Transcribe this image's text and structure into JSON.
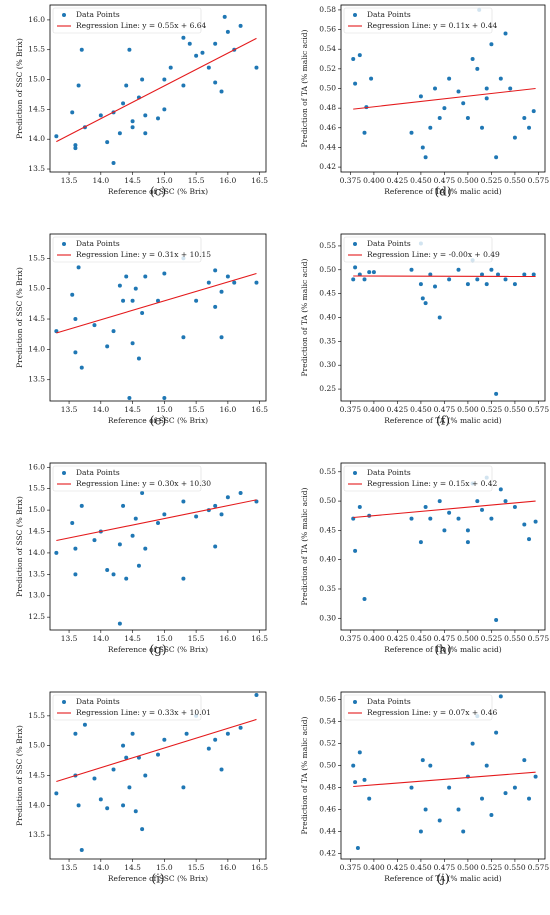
{
  "chart_data": [
    {
      "type": "scatter",
      "label": "(c)",
      "x_label": "Reference of SSC (% Brix)",
      "y_label": "Prediction of SSC (% Brix)",
      "legend": "upper left",
      "xlim": [
        13.2,
        16.6
      ],
      "xticks": [
        13.5,
        {
          "value": 14,
          "label": "14.0"
        },
        14.5,
        {
          "value": 15,
          "label": "15.0"
        },
        15.5,
        {
          "value": 16,
          "label": "16.0"
        },
        16.5
      ],
      "ylim": [
        13.45,
        16.25
      ],
      "yticks": [
        13.5,
        {
          "value": 14,
          "label": "14.0"
        },
        14.5,
        {
          "value": 15,
          "label": "15.0"
        },
        15.5,
        {
          "value": 16,
          "label": "16.0"
        }
      ],
      "series": [
        {
          "name": "Data Points",
          "color": "#1f77b4",
          "x": [
            13.3,
            13.55,
            13.6,
            13.6,
            13.65,
            13.7,
            13.75,
            14.0,
            14.1,
            14.2,
            14.2,
            14.3,
            14.35,
            14.4,
            14.45,
            14.5,
            14.5,
            14.6,
            14.65,
            14.7,
            14.7,
            14.9,
            15.0,
            15.0,
            15.1,
            15.3,
            15.3,
            15.4,
            15.5,
            15.6,
            15.7,
            15.8,
            15.8,
            15.9,
            15.95,
            16.0,
            16.1,
            16.2,
            16.45
          ],
          "values": [
            14.05,
            14.45,
            13.85,
            13.9,
            14.9,
            15.5,
            14.2,
            14.4,
            13.95,
            13.6,
            14.45,
            14.1,
            14.6,
            14.9,
            15.5,
            14.2,
            14.3,
            14.7,
            15.0,
            14.4,
            14.1,
            14.35,
            14.5,
            15.0,
            15.2,
            14.9,
            15.7,
            15.6,
            15.4,
            15.45,
            15.2,
            14.95,
            15.6,
            14.8,
            16.05,
            15.8,
            15.5,
            15.9,
            15.2
          ]
        },
        {
          "name": "Regression Line: y = 0.55x + 6.64",
          "color": "#e41a1c",
          "x": [
            13.3,
            16.45
          ],
          "values": [
            13.96,
            15.69
          ]
        }
      ]
    },
    {
      "type": "scatter",
      "label": "(d)",
      "x_label": "Reference of TA (% malic acid)",
      "y_label": "Prediction of TA (% malic acid)",
      "legend": "upper left",
      "xlim": [
        0.365,
        0.582
      ],
      "xticks": [
        0.375,
        {
          "value": 0.4,
          "label": "0.400"
        },
        0.425,
        {
          "value": 0.45,
          "label": "0.450"
        },
        0.475,
        {
          "value": 0.5,
          "label": "0.500"
        },
        0.525,
        {
          "value": 0.55,
          "label": "0.550"
        },
        0.575
      ],
      "ylim": [
        0.415,
        0.585
      ],
      "yticks": [
        0.42,
        0.44,
        0.46,
        0.48,
        {
          "value": 0.5,
          "label": "0.50"
        },
        0.52,
        0.54,
        0.56,
        0.58
      ],
      "series": [
        {
          "name": "Data Points",
          "color": "#1f77b4",
          "x": [
            0.378,
            0.38,
            0.385,
            0.39,
            0.392,
            0.397,
            0.44,
            0.45,
            0.452,
            0.455,
            0.46,
            0.465,
            0.47,
            0.475,
            0.48,
            0.49,
            0.495,
            0.5,
            0.505,
            0.51,
            0.512,
            0.515,
            0.52,
            0.525,
            0.53,
            0.535,
            0.54,
            0.545,
            0.55,
            0.56,
            0.565,
            0.57,
            0.52
          ],
          "values": [
            0.53,
            0.505,
            0.534,
            0.455,
            0.481,
            0.51,
            0.455,
            0.492,
            0.44,
            0.43,
            0.46,
            0.5,
            0.47,
            0.48,
            0.51,
            0.497,
            0.485,
            0.47,
            0.53,
            0.52,
            0.58,
            0.46,
            0.49,
            0.545,
            0.43,
            0.51,
            0.556,
            0.5,
            0.45,
            0.47,
            0.46,
            0.477,
            0.5
          ]
        },
        {
          "name": "Regression Line: y = 0.11x + 0.44",
          "color": "#e41a1c",
          "x": [
            0.378,
            0.572
          ],
          "values": [
            0.479,
            0.5
          ]
        }
      ]
    },
    {
      "type": "scatter",
      "label": "(e)",
      "x_label": "Reference of SSC (% Brix)",
      "y_label": "Prediction of SSC (% Brix)",
      "legend": "upper left",
      "xlim": [
        13.2,
        16.6
      ],
      "xticks": [
        13.5,
        {
          "value": 14,
          "label": "14.0"
        },
        14.5,
        {
          "value": 15,
          "label": "15.0"
        },
        15.5,
        {
          "value": 16,
          "label": "16.0"
        },
        16.5
      ],
      "ylim": [
        13.15,
        15.9
      ],
      "yticks": [
        13.5,
        {
          "value": 14,
          "label": "14.0"
        },
        14.5,
        {
          "value": 15,
          "label": "15.0"
        },
        15.5
      ],
      "series": [
        {
          "name": "Data Points",
          "color": "#1f77b4",
          "x": [
            13.3,
            13.55,
            13.6,
            13.6,
            13.65,
            13.7,
            13.9,
            14.1,
            14.2,
            14.3,
            14.35,
            14.4,
            14.45,
            14.5,
            14.5,
            14.55,
            14.6,
            14.65,
            14.7,
            14.9,
            15.0,
            15.0,
            15.3,
            15.3,
            15.5,
            15.7,
            15.8,
            15.8,
            15.9,
            16.0,
            16.1,
            16.45,
            15.9
          ],
          "values": [
            14.3,
            14.9,
            13.95,
            14.5,
            15.35,
            13.7,
            14.4,
            14.05,
            14.3,
            15.05,
            14.8,
            15.2,
            13.2,
            14.1,
            14.8,
            15.0,
            13.85,
            14.6,
            15.2,
            14.8,
            15.25,
            13.2,
            15.5,
            14.2,
            14.8,
            15.1,
            15.3,
            14.7,
            14.2,
            15.2,
            15.1,
            15.1,
            14.95
          ]
        },
        {
          "name": "Regression Line: y = 0.31x + 10.15",
          "color": "#e41a1c",
          "x": [
            13.3,
            16.45
          ],
          "values": [
            14.27,
            15.25
          ]
        }
      ]
    },
    {
      "type": "scatter",
      "label": "(f)",
      "x_label": "Reference of TA (% malic acid)",
      "y_label": "Prediction of TA (% malic acid)",
      "legend": "upper left",
      "xlim": [
        0.365,
        0.582
      ],
      "xticks": [
        0.375,
        {
          "value": 0.4,
          "label": "0.400"
        },
        0.425,
        {
          "value": 0.45,
          "label": "0.450"
        },
        0.475,
        {
          "value": 0.5,
          "label": "0.500"
        },
        0.525,
        {
          "value": 0.55,
          "label": "0.550"
        },
        0.575
      ],
      "ylim": [
        0.225,
        0.575
      ],
      "yticks": [
        0.25,
        {
          "value": 0.3,
          "label": "0.30"
        },
        0.35,
        {
          "value": 0.4,
          "label": "0.40"
        },
        0.45,
        {
          "value": 0.5,
          "label": "0.50"
        },
        0.55
      ],
      "series": [
        {
          "name": "Data Points",
          "color": "#1f77b4",
          "x": [
            0.378,
            0.38,
            0.385,
            0.39,
            0.395,
            0.4,
            0.44,
            0.45,
            0.452,
            0.455,
            0.46,
            0.465,
            0.47,
            0.48,
            0.49,
            0.5,
            0.505,
            0.51,
            0.515,
            0.52,
            0.525,
            0.53,
            0.532,
            0.54,
            0.55,
            0.56,
            0.57,
            0.45
          ],
          "values": [
            0.48,
            0.505,
            0.49,
            0.48,
            0.495,
            0.495,
            0.5,
            0.47,
            0.44,
            0.43,
            0.49,
            0.465,
            0.4,
            0.48,
            0.5,
            0.47,
            0.52,
            0.48,
            0.49,
            0.47,
            0.5,
            0.24,
            0.49,
            0.48,
            0.47,
            0.49,
            0.49,
            0.555
          ]
        },
        {
          "name": "Regression Line: y = -0.00x + 0.49",
          "color": "#e41a1c",
          "x": [
            0.378,
            0.572
          ],
          "values": [
            0.487,
            0.486
          ]
        }
      ]
    },
    {
      "type": "scatter",
      "label": "(g)",
      "x_label": "Reference of SSC (% Brix)",
      "y_label": "Prediction of SSC (% Brix)",
      "legend": "upper left",
      "xlim": [
        13.2,
        16.6
      ],
      "xticks": [
        13.5,
        {
          "value": 14,
          "label": "14.0"
        },
        14.5,
        {
          "value": 15,
          "label": "15.0"
        },
        15.5,
        {
          "value": 16,
          "label": "16.0"
        },
        16.5
      ],
      "ylim": [
        12.2,
        16.1
      ],
      "yticks": [
        12.5,
        {
          "value": 13,
          "label": "13.0"
        },
        13.5,
        {
          "value": 14,
          "label": "14.0"
        },
        14.5,
        {
          "value": 15,
          "label": "15.0"
        },
        15.5,
        {
          "value": 16,
          "label": "16.0"
        }
      ],
      "series": [
        {
          "name": "Data Points",
          "color": "#1f77b4",
          "x": [
            13.3,
            13.55,
            13.6,
            13.6,
            13.7,
            13.9,
            14.0,
            14.1,
            14.2,
            14.3,
            14.3,
            14.35,
            14.4,
            14.5,
            14.55,
            14.6,
            14.65,
            14.7,
            14.9,
            15.0,
            15.3,
            15.3,
            15.5,
            15.7,
            15.8,
            15.8,
            15.9,
            16.0,
            16.2,
            16.45
          ],
          "values": [
            14.0,
            14.7,
            13.5,
            14.1,
            15.1,
            14.3,
            14.5,
            13.6,
            13.5,
            14.2,
            12.35,
            15.1,
            13.4,
            14.4,
            14.8,
            13.7,
            15.4,
            14.1,
            14.7,
            14.9,
            15.2,
            13.4,
            14.85,
            15.0,
            14.15,
            15.1,
            14.9,
            15.3,
            15.4,
            15.2
          ]
        },
        {
          "name": "Regression Line: y = 0.30x + 10.30",
          "color": "#e41a1c",
          "x": [
            13.3,
            16.45
          ],
          "values": [
            14.29,
            15.24
          ]
        }
      ]
    },
    {
      "type": "scatter",
      "label": "(h)",
      "x_label": "Reference of TA (% malic acid)",
      "y_label": "Prediction of TA (% malic acid)",
      "legend": "upper left",
      "xlim": [
        0.365,
        0.582
      ],
      "xticks": [
        0.375,
        {
          "value": 0.4,
          "label": "0.400"
        },
        0.425,
        {
          "value": 0.45,
          "label": "0.450"
        },
        0.475,
        {
          "value": 0.5,
          "label": "0.500"
        },
        0.525,
        {
          "value": 0.55,
          "label": "0.550"
        },
        0.575
      ],
      "ylim": [
        0.28,
        0.565
      ],
      "yticks": [
        {
          "value": 0.3,
          "label": "0.30"
        },
        0.35,
        {
          "value": 0.4,
          "label": "0.40"
        },
        0.45,
        {
          "value": 0.5,
          "label": "0.50"
        },
        0.55
      ],
      "series": [
        {
          "name": "Data Points",
          "color": "#1f77b4",
          "x": [
            0.378,
            0.38,
            0.385,
            0.39,
            0.395,
            0.44,
            0.45,
            0.455,
            0.46,
            0.47,
            0.475,
            0.48,
            0.49,
            0.5,
            0.505,
            0.51,
            0.515,
            0.52,
            0.525,
            0.53,
            0.535,
            0.54,
            0.55,
            0.56,
            0.565,
            0.572,
            0.5
          ],
          "values": [
            0.47,
            0.415,
            0.49,
            0.333,
            0.475,
            0.47,
            0.43,
            0.49,
            0.47,
            0.5,
            0.45,
            0.48,
            0.47,
            0.45,
            0.53,
            0.5,
            0.485,
            0.54,
            0.47,
            0.297,
            0.52,
            0.5,
            0.49,
            0.46,
            0.435,
            0.465,
            0.43
          ]
        },
        {
          "name": "Regression Line: y = 0.15x + 0.42",
          "color": "#e41a1c",
          "x": [
            0.378,
            0.572
          ],
          "values": [
            0.472,
            0.5
          ]
        }
      ]
    },
    {
      "type": "scatter",
      "label": "(i)",
      "x_label": "Reference of SSC (% Brix)",
      "y_label": "Prediction of SSC (% Brix)",
      "legend": "upper left",
      "xlim": [
        13.2,
        16.6
      ],
      "xticks": [
        13.5,
        {
          "value": 14,
          "label": "14.0"
        },
        14.5,
        {
          "value": 15,
          "label": "15.0"
        },
        15.5,
        {
          "value": 16,
          "label": "16.0"
        },
        16.5
      ],
      "ylim": [
        13.1,
        15.9
      ],
      "yticks": [
        13.5,
        {
          "value": 14,
          "label": "14.0"
        },
        14.5,
        {
          "value": 15,
          "label": "15.0"
        },
        15.5
      ],
      "series": [
        {
          "name": "Data Points",
          "color": "#1f77b4",
          "x": [
            13.3,
            13.6,
            13.6,
            13.65,
            13.7,
            13.75,
            13.9,
            14.0,
            14.1,
            14.2,
            14.35,
            14.35,
            14.4,
            14.45,
            14.5,
            14.55,
            14.6,
            14.65,
            14.7,
            14.9,
            15.0,
            15.3,
            15.35,
            15.5,
            15.7,
            15.8,
            15.9,
            16.0,
            16.2,
            16.45
          ],
          "values": [
            14.2,
            15.2,
            14.5,
            14.0,
            13.25,
            15.35,
            14.45,
            14.1,
            13.95,
            14.6,
            14.0,
            15.0,
            14.8,
            14.3,
            15.2,
            13.9,
            14.8,
            13.6,
            14.5,
            14.85,
            15.1,
            14.3,
            15.2,
            15.5,
            14.95,
            15.1,
            14.6,
            15.2,
            15.3,
            15.85
          ]
        },
        {
          "name": "Regression Line: y = 0.33x + 10.01",
          "color": "#e41a1c",
          "x": [
            13.3,
            16.45
          ],
          "values": [
            14.4,
            15.44
          ]
        }
      ]
    },
    {
      "type": "scatter",
      "label": "(j)",
      "x_label": "Reference of TA (% malic acid)",
      "y_label": "Prediction of TA (% malic acid)",
      "legend": "upper left",
      "xlim": [
        0.365,
        0.582
      ],
      "xticks": [
        0.375,
        {
          "value": 0.4,
          "label": "0.400"
        },
        0.425,
        {
          "value": 0.45,
          "label": "0.450"
        },
        0.475,
        {
          "value": 0.5,
          "label": "0.500"
        },
        0.525,
        {
          "value": 0.55,
          "label": "0.550"
        },
        0.575
      ],
      "ylim": [
        0.415,
        0.567
      ],
      "yticks": [
        0.42,
        0.44,
        0.46,
        0.48,
        {
          "value": 0.5,
          "label": "0.50"
        },
        0.52,
        0.54,
        0.56
      ],
      "series": [
        {
          "name": "Data Points",
          "color": "#1f77b4",
          "x": [
            0.378,
            0.38,
            0.383,
            0.385,
            0.39,
            0.395,
            0.44,
            0.45,
            0.452,
            0.455,
            0.46,
            0.47,
            0.48,
            0.49,
            0.495,
            0.5,
            0.505,
            0.51,
            0.515,
            0.52,
            0.525,
            0.53,
            0.535,
            0.54,
            0.55,
            0.56,
            0.565,
            0.572
          ],
          "values": [
            0.5,
            0.485,
            0.425,
            0.512,
            0.487,
            0.47,
            0.48,
            0.44,
            0.505,
            0.46,
            0.5,
            0.45,
            0.48,
            0.46,
            0.44,
            0.49,
            0.52,
            0.545,
            0.47,
            0.5,
            0.455,
            0.53,
            0.563,
            0.475,
            0.48,
            0.505,
            0.47,
            0.49
          ]
        },
        {
          "name": "Regression Line: y = 0.07x + 0.46",
          "color": "#e41a1c",
          "x": [
            0.378,
            0.572
          ],
          "values": [
            0.481,
            0.494
          ]
        }
      ]
    }
  ]
}
